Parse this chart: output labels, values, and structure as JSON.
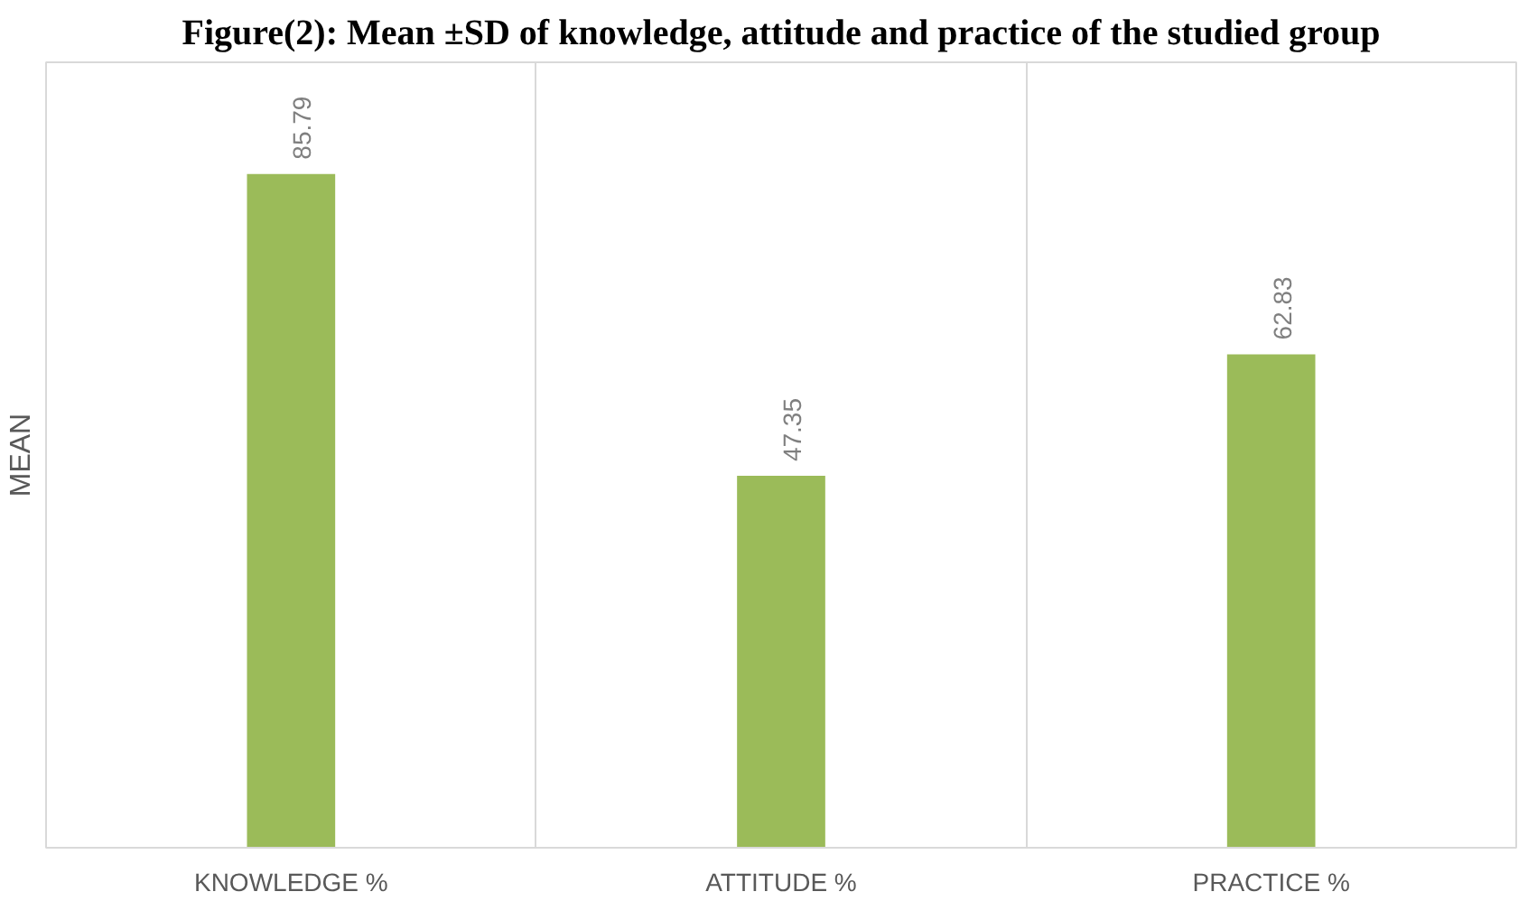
{
  "chart_data": {
    "type": "bar",
    "title": "Figure(2): Mean ±SD of knowledge, attitude and practice of the studied group",
    "ylabel": "MEAN",
    "categories": [
      "KNOWLEDGE %",
      "ATTITUDE %",
      "PRACTICE %"
    ],
    "values": [
      85.79,
      47.35,
      62.83
    ],
    "color": "#9bbb59",
    "ylim": [
      0,
      100
    ],
    "tick_labels": "x",
    "data_labels": true,
    "grid": "x"
  }
}
